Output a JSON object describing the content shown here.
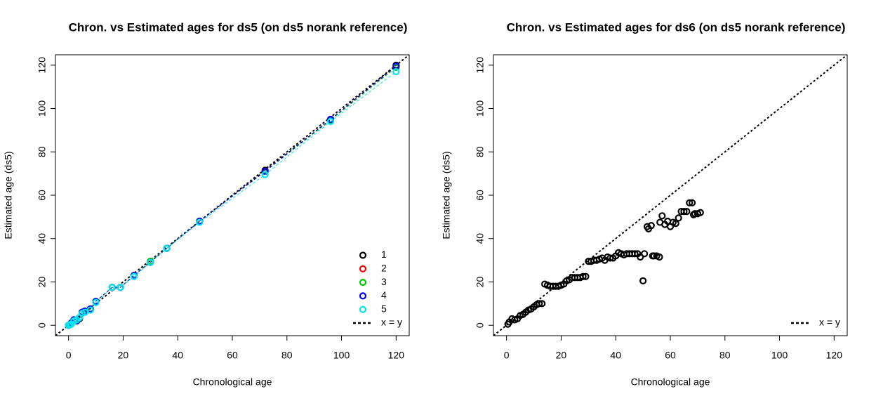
{
  "chart_data": [
    {
      "type": "scatter",
      "title": "Chron. vs Estimated ages for ds5 (on ds5 norank reference)",
      "x_label": "Chronological age",
      "y_label": "Estimated age (ds5)",
      "xlim": [
        -4.8,
        124.8
      ],
      "ylim": [
        -4.8,
        124.8
      ],
      "xticks": [
        0,
        20,
        40,
        60,
        80,
        100,
        120
      ],
      "yticks": [
        0,
        20,
        40,
        60,
        80,
        100,
        120
      ],
      "lines": true,
      "x": [
        0,
        0.5,
        1,
        2,
        3,
        4,
        5,
        6,
        8,
        10,
        16,
        19,
        24,
        30,
        36,
        48,
        72,
        96,
        120
      ],
      "series": [
        {
          "name": "1",
          "color": "#000000",
          "values": [
            0,
            0.3,
            1,
            2.5,
            2,
            3,
            6,
            6.5,
            7.5,
            11,
            17.5,
            17.5,
            23,
            29.5,
            35.5,
            48,
            71.5,
            95,
            120
          ]
        },
        {
          "name": "2",
          "color": "#ff0000",
          "values": [
            0,
            0.3,
            1,
            2.5,
            2,
            3.5,
            6,
            6.5,
            7.5,
            11,
            17.5,
            17.5,
            23,
            29.5,
            35.5,
            48,
            71,
            95,
            119.5
          ]
        },
        {
          "name": "3",
          "color": "#00cd00",
          "values": [
            0,
            0.3,
            1,
            2.5,
            2,
            3.5,
            6,
            6.5,
            7.5,
            11,
            17.5,
            17.5,
            23,
            29.5,
            35.5,
            48,
            71,
            94.5,
            119
          ]
        },
        {
          "name": "4",
          "color": "#0000ff",
          "values": [
            0,
            0.3,
            1,
            2.5,
            2,
            3.5,
            6,
            6.5,
            7.5,
            11,
            17.5,
            17.5,
            23,
            29,
            35.5,
            48,
            71,
            95,
            119.5
          ]
        },
        {
          "name": "5",
          "color": "#00e5ee",
          "values": [
            0,
            0.3,
            0.5,
            2,
            2.5,
            3.5,
            5.5,
            6,
            7,
            10.5,
            17.5,
            17.5,
            22.5,
            29,
            35.5,
            47.5,
            69.5,
            94,
            117
          ]
        }
      ],
      "reference_line": {
        "name": "x = y",
        "color": "#000000"
      },
      "legend": "bottomright"
    },
    {
      "type": "scatter",
      "title": "Chron. vs Estimated ages for ds6 (on ds5 norank reference)",
      "x_label": "Chronological age",
      "y_label": "Estimated age (ds5)",
      "xlim": [
        -4.8,
        124.8
      ],
      "ylim": [
        -4.8,
        124.8
      ],
      "xticks": [
        0,
        20,
        40,
        60,
        80,
        100,
        120
      ],
      "yticks": [
        0,
        20,
        40,
        60,
        80,
        100,
        120
      ],
      "color": "#000000",
      "x": [
        0.5,
        1,
        2,
        3,
        4,
        5,
        6,
        7,
        8,
        9,
        10,
        11,
        12,
        13,
        14,
        15,
        16,
        17,
        18,
        19,
        20,
        21,
        22,
        23,
        24,
        25,
        26,
        27,
        28,
        29,
        30,
        31,
        32,
        33,
        34,
        35,
        36,
        37,
        38,
        39,
        40,
        41,
        42,
        43,
        44,
        45,
        46,
        47,
        48,
        49,
        50,
        50.5,
        51.5,
        52,
        53,
        53.5,
        54,
        55,
        56,
        56.2,
        57,
        58,
        59,
        60,
        61,
        62,
        63,
        64,
        65,
        66,
        67,
        68,
        68.5,
        69,
        70,
        71
      ],
      "values": [
        0.5,
        1.5,
        3,
        2.5,
        3,
        4.5,
        5,
        6,
        7,
        7.5,
        8.5,
        9.5,
        10,
        10,
        19,
        18.5,
        18,
        18,
        18,
        18,
        18.5,
        19,
        20.5,
        21,
        22,
        22,
        22,
        22,
        22.5,
        22.5,
        29.5,
        29.5,
        30,
        30,
        30.5,
        31,
        30,
        31.5,
        31,
        31,
        32,
        33.5,
        33,
        32.5,
        33,
        33,
        33,
        33,
        33,
        31.5,
        20.5,
        33,
        45.5,
        44.5,
        46,
        32,
        32,
        32,
        31.5,
        47.5,
        50.5,
        46.5,
        48,
        45.5,
        47.5,
        47,
        49.5,
        52.5,
        52.5,
        52.5,
        56.5,
        56.5,
        51,
        51.5,
        51.5,
        52
      ],
      "reference_line": {
        "name": "x = y",
        "color": "#000000"
      },
      "legend": "bottomright"
    }
  ]
}
